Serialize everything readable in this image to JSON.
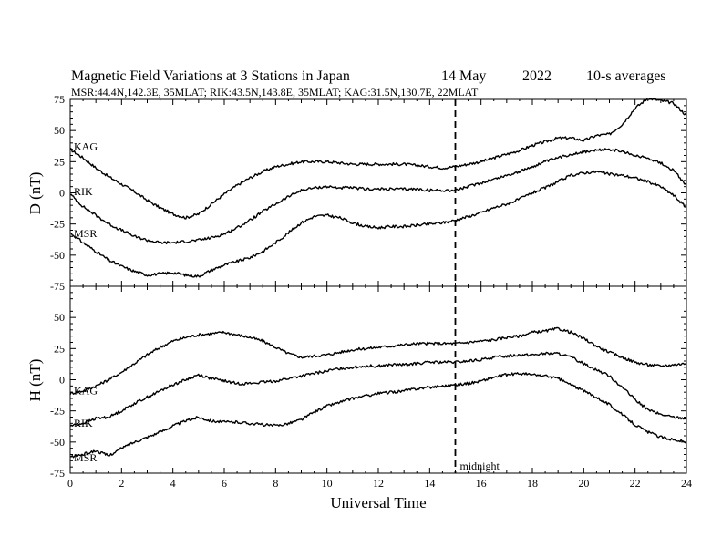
{
  "header": {
    "title": "Magnetic Field Variations at 3 Stations in Japan",
    "date": "14 May",
    "year": "2022",
    "averaging": "10-s averages",
    "stations_line": "MSR:44.4N,142.3E, 35MLAT;  RIK:43.5N,143.8E, 35MLAT;  KAG:31.5N,130.7E, 22MLAT"
  },
  "chart_data": [
    {
      "type": "line",
      "panel": "top",
      "ylabel": "D (nT)",
      "ylim": [
        -75,
        75
      ],
      "yticks": [
        75,
        50,
        25,
        0,
        -25,
        -50,
        -75
      ],
      "xlim": [
        0,
        24
      ],
      "series": [
        {
          "name": "KAG",
          "x": [
            0,
            0.5,
            1,
            1.5,
            2,
            2.5,
            3,
            3.5,
            4,
            4.5,
            5,
            5.5,
            6,
            6.5,
            7,
            7.5,
            8,
            8.5,
            9,
            9.5,
            10,
            10.5,
            11,
            11.5,
            12,
            12.5,
            13,
            13.5,
            14,
            14.5,
            15,
            15.5,
            16,
            16.5,
            17,
            17.5,
            18,
            18.5,
            19,
            19.5,
            20,
            20.5,
            21,
            21.5,
            22,
            22.5,
            23,
            23.5,
            24
          ],
          "values": [
            35,
            28,
            20,
            13,
            7,
            1,
            -6,
            -12,
            -17,
            -20,
            -17,
            -9,
            -1,
            6,
            12,
            17,
            21,
            23,
            25,
            25,
            25,
            24,
            23,
            23,
            23,
            23,
            23,
            22,
            21,
            20,
            21,
            23,
            25,
            28,
            31,
            34,
            38,
            41,
            44,
            44,
            42,
            46,
            47,
            55,
            68,
            76,
            74,
            72,
            62
          ]
        },
        {
          "name": "RIK",
          "x": [
            0,
            0.5,
            1,
            1.5,
            2,
            2.5,
            3,
            3.5,
            4,
            4.5,
            5,
            5.5,
            6,
            6.5,
            7,
            7.5,
            8,
            8.5,
            9,
            9.5,
            10,
            10.5,
            11,
            11.5,
            12,
            12.5,
            13,
            13.5,
            14,
            14.5,
            15,
            15.5,
            16,
            16.5,
            17,
            17.5,
            18,
            18.5,
            19,
            19.5,
            20,
            20.5,
            21,
            21.5,
            22,
            22.5,
            23,
            23.5,
            24
          ],
          "values": [
            -1,
            -11,
            -18,
            -25,
            -30,
            -35,
            -38,
            -40,
            -40,
            -39,
            -38,
            -36,
            -33,
            -28,
            -22,
            -15,
            -9,
            -3,
            2,
            4,
            5,
            4,
            4,
            3,
            3,
            3,
            3,
            3,
            2,
            2,
            2,
            5,
            8,
            11,
            14,
            17,
            21,
            25,
            28,
            31,
            33,
            34,
            35,
            33,
            30,
            28,
            24,
            18,
            6
          ]
        },
        {
          "name": "MSR",
          "x": [
            0,
            0.5,
            1,
            1.5,
            2,
            2.5,
            3,
            3.5,
            4,
            4.5,
            5,
            5.5,
            6,
            6.5,
            7,
            7.5,
            8,
            8.5,
            9,
            9.5,
            10,
            10.5,
            11,
            11.5,
            12,
            12.5,
            13,
            13.5,
            14,
            14.5,
            15,
            15.5,
            16,
            16.5,
            17,
            17.5,
            18,
            18.5,
            19,
            19.5,
            20,
            20.5,
            21,
            21.5,
            22,
            22.5,
            23,
            23.5,
            24
          ],
          "values": [
            -32,
            -40,
            -47,
            -54,
            -59,
            -63,
            -66,
            -65,
            -64,
            -66,
            -67,
            -62,
            -58,
            -55,
            -52,
            -47,
            -40,
            -32,
            -24,
            -19,
            -18,
            -20,
            -24,
            -27,
            -28,
            -27,
            -27,
            -26,
            -25,
            -24,
            -22,
            -19,
            -16,
            -12,
            -9,
            -5,
            0,
            4,
            9,
            14,
            16,
            17,
            15,
            14,
            12,
            9,
            5,
            -2,
            -12
          ]
        }
      ]
    },
    {
      "type": "line",
      "panel": "bottom",
      "ylabel": "H (nT)",
      "xlabel": "Universal Time",
      "ylim": [
        -75,
        75
      ],
      "yticks": [
        50,
        25,
        0,
        -25,
        -50,
        -75
      ],
      "xlim": [
        0,
        24
      ],
      "xticks": [
        0,
        2,
        4,
        6,
        8,
        10,
        12,
        14,
        16,
        18,
        20,
        22,
        24
      ],
      "series": [
        {
          "name": "KAG",
          "x": [
            0,
            0.5,
            1,
            1.5,
            2,
            2.5,
            3,
            3.5,
            4,
            4.5,
            5,
            5.5,
            6,
            6.5,
            7,
            7.5,
            8,
            8.5,
            9,
            9.5,
            10,
            10.5,
            11,
            11.5,
            12,
            12.5,
            13,
            13.5,
            14,
            14.5,
            15,
            15.5,
            16,
            16.5,
            17,
            17.5,
            18,
            18.5,
            19,
            19.5,
            20,
            20.5,
            21,
            21.5,
            22,
            22.5,
            23,
            23.5,
            24
          ],
          "values": [
            -11,
            -9,
            -5,
            0,
            6,
            13,
            20,
            26,
            31,
            34,
            36,
            37,
            38,
            36,
            34,
            31,
            26,
            21,
            18,
            19,
            20,
            22,
            24,
            25,
            26,
            27,
            28,
            29,
            29,
            29,
            29,
            30,
            31,
            32,
            34,
            35,
            38,
            39,
            41,
            38,
            33,
            27,
            22,
            18,
            14,
            12,
            11,
            12,
            13
          ]
        },
        {
          "name": "RIK",
          "x": [
            0,
            0.5,
            1,
            1.5,
            2,
            2.5,
            3,
            3.5,
            4,
            4.5,
            5,
            5.5,
            6,
            6.5,
            7,
            7.5,
            8,
            8.5,
            9,
            9.5,
            10,
            10.5,
            11,
            11.5,
            12,
            12.5,
            13,
            13.5,
            14,
            14.5,
            15,
            15.5,
            16,
            16.5,
            17,
            17.5,
            18,
            18.5,
            19,
            19.5,
            20,
            20.5,
            21,
            21.5,
            22,
            22.5,
            23,
            23.5,
            24
          ],
          "values": [
            -37,
            -35,
            -31,
            -30,
            -25,
            -19,
            -14,
            -9,
            -4,
            0,
            4,
            1,
            -1,
            -3,
            -3,
            -2,
            -1,
            1,
            3,
            5,
            7,
            9,
            10,
            11,
            11,
            12,
            12,
            13,
            14,
            14,
            14,
            15,
            16,
            18,
            19,
            20,
            20,
            21,
            21,
            18,
            13,
            8,
            3,
            -6,
            -16,
            -24,
            -28,
            -30,
            -31
          ]
        },
        {
          "name": "MSR",
          "x": [
            0,
            0.5,
            1,
            1.5,
            2,
            2.5,
            3,
            3.5,
            4,
            4.5,
            5,
            5.5,
            6,
            6.5,
            7,
            7.5,
            8,
            8.5,
            9,
            9.5,
            10,
            10.5,
            11,
            11.5,
            12,
            12.5,
            13,
            13.5,
            14,
            14.5,
            15,
            15.5,
            16,
            16.5,
            17,
            17.5,
            18,
            18.5,
            19,
            19.5,
            20,
            20.5,
            21,
            21.5,
            22,
            22.5,
            23,
            23.5,
            24
          ],
          "values": [
            -62,
            -60,
            -57,
            -61,
            -55,
            -50,
            -46,
            -42,
            -37,
            -33,
            -30,
            -33,
            -34,
            -34,
            -35,
            -36,
            -37,
            -35,
            -32,
            -26,
            -21,
            -18,
            -15,
            -13,
            -11,
            -10,
            -9,
            -7,
            -6,
            -5,
            -4,
            -3,
            -1,
            2,
            4,
            5,
            4,
            3,
            1,
            -4,
            -9,
            -14,
            -20,
            -28,
            -36,
            -42,
            -46,
            -48,
            -50
          ]
        }
      ]
    }
  ],
  "midnight_marker": {
    "x": 15,
    "label": "midnight"
  }
}
